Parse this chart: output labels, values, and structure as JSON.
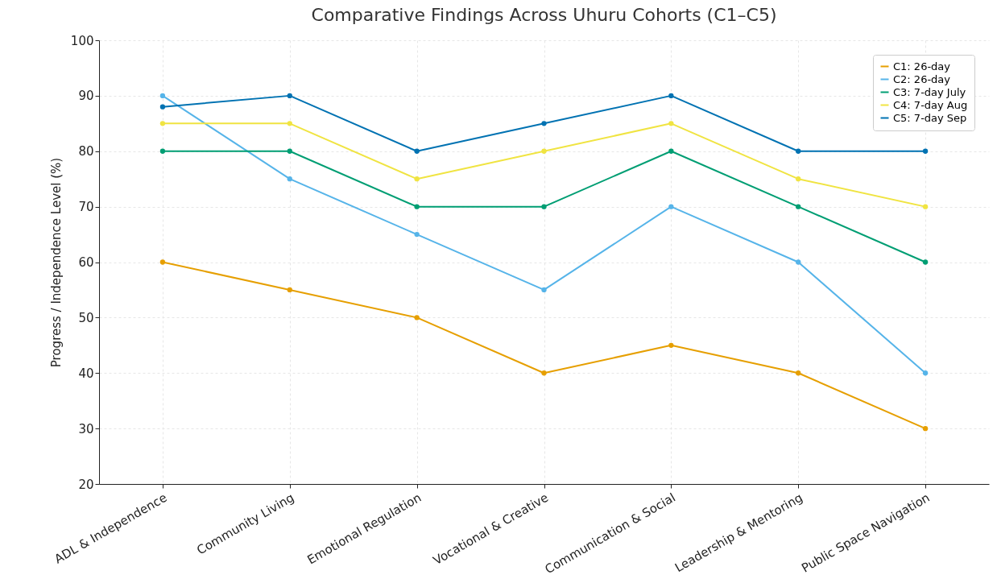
{
  "chart_data": {
    "type": "line",
    "title": "Comparative Findings Across Uhuru Cohorts (C1–C5)",
    "ylabel": "Progress / Independence Level (%)",
    "categories": [
      "ADL & Independence",
      "Community Living",
      "Emotional Regulation",
      "Vocational & Creative",
      "Communication & Social",
      "Leadership & Mentoring",
      "Public Space Navigation"
    ],
    "series": [
      {
        "name": "C1: 26-day",
        "color": "#e69f00",
        "values": [
          60,
          55,
          50,
          40,
          45,
          40,
          30
        ]
      },
      {
        "name": "C2: 26-day",
        "color": "#56b4e9",
        "values": [
          90,
          75,
          65,
          55,
          70,
          60,
          40
        ]
      },
      {
        "name": "C3: 7-day July",
        "color": "#009e73",
        "values": [
          80,
          80,
          70,
          70,
          80,
          70,
          60
        ]
      },
      {
        "name": "C4: 7-day Aug",
        "color": "#f0e442",
        "values": [
          85,
          85,
          75,
          80,
          85,
          75,
          70
        ]
      },
      {
        "name": "C5: 7-day Sep",
        "color": "#0072b2",
        "values": [
          88,
          90,
          80,
          85,
          90,
          80,
          80
        ]
      }
    ],
    "ylim": [
      20,
      100
    ],
    "yticks": [
      20,
      30,
      40,
      50,
      60,
      70,
      80,
      90,
      100
    ],
    "grid": true,
    "legend": "top right",
    "marker": "circle",
    "line_style": "solid"
  }
}
